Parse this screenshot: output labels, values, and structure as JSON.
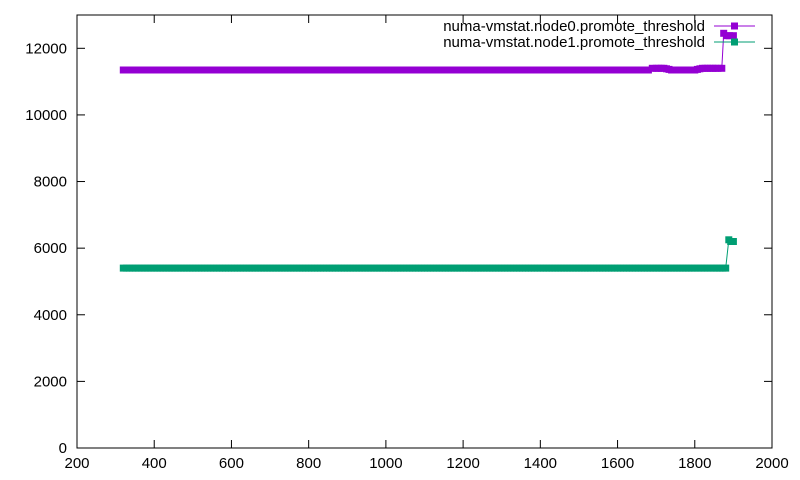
{
  "chart_data": {
    "type": "line",
    "title": "",
    "xlabel": "",
    "ylabel": "",
    "xlim": [
      200,
      2000
    ],
    "ylim": [
      0,
      13000
    ],
    "xticks": [
      200,
      400,
      600,
      800,
      1000,
      1200,
      1400,
      1600,
      1800,
      2000
    ],
    "yticks": [
      0,
      2000,
      4000,
      6000,
      8000,
      10000,
      12000
    ],
    "grid": false,
    "legend_position": "top-right",
    "series": [
      {
        "name": "numa-vmstat.node0.promote_threshold",
        "color": "#9400d3",
        "marker": "square",
        "x": [
          320,
          400,
          500,
          600,
          700,
          800,
          900,
          1000,
          1100,
          1200,
          1300,
          1400,
          1500,
          1600,
          1680,
          1690,
          1700,
          1720,
          1740,
          1760,
          1780,
          1800,
          1820,
          1840,
          1860,
          1870,
          1875,
          1882,
          1890,
          1900
        ],
        "y": [
          11350,
          11350,
          11350,
          11350,
          11350,
          11350,
          11350,
          11350,
          11350,
          11350,
          11350,
          11350,
          11350,
          11350,
          11350,
          11400,
          11400,
          11400,
          11350,
          11350,
          11350,
          11350,
          11400,
          11400,
          11400,
          11400,
          12450,
          12380,
          12380,
          12380
        ]
      },
      {
        "name": "numa-vmstat.node1.promote_threshold",
        "color": "#009e73",
        "marker": "square",
        "x": [
          320,
          400,
          500,
          600,
          700,
          800,
          900,
          1000,
          1100,
          1200,
          1300,
          1400,
          1500,
          1600,
          1700,
          1800,
          1850,
          1880,
          1888,
          1893,
          1900
        ],
        "y": [
          5400,
          5400,
          5400,
          5400,
          5400,
          5400,
          5400,
          5400,
          5400,
          5400,
          5400,
          5400,
          5400,
          5400,
          5400,
          5400,
          5400,
          5400,
          6250,
          6200,
          6200
        ]
      }
    ]
  }
}
